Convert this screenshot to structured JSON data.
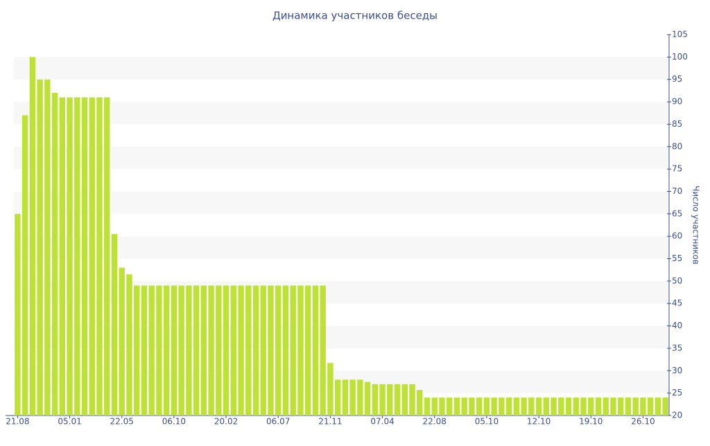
{
  "chart_data": {
    "type": "bar",
    "title": "Динамика участников беседы",
    "y_axis_label": "Число участников",
    "categories": [
      "21.08",
      null,
      null,
      null,
      null,
      null,
      null,
      "05.01",
      null,
      null,
      null,
      null,
      null,
      null,
      "22.05",
      null,
      null,
      null,
      null,
      null,
      null,
      "06.10",
      null,
      null,
      null,
      null,
      null,
      null,
      "20.02",
      null,
      null,
      null,
      null,
      null,
      null,
      "06.07",
      null,
      null,
      null,
      null,
      null,
      null,
      "21.11",
      null,
      null,
      null,
      null,
      null,
      null,
      "07.04",
      null,
      null,
      null,
      null,
      null,
      null,
      "22.08",
      null,
      null,
      null,
      null,
      null,
      null,
      "05.10",
      null,
      null,
      null,
      null,
      null,
      null,
      "12.10",
      null,
      null,
      null,
      null,
      null,
      null,
      "19.10",
      null,
      null,
      null,
      null,
      null,
      null,
      "26.10",
      null,
      null,
      null
    ],
    "values": [
      65,
      87,
      100,
      95,
      95,
      92,
      91,
      91,
      91,
      91,
      91,
      91,
      91,
      60.5,
      53,
      51.5,
      49,
      49,
      49,
      49,
      49,
      49,
      49,
      49,
      49,
      49,
      49,
      49,
      49,
      49,
      49,
      49,
      49,
      49,
      49,
      49,
      49,
      49,
      49,
      49,
      49,
      49,
      31.7,
      28,
      28,
      28,
      28,
      27.5,
      27,
      27,
      27,
      27,
      27,
      27,
      25.7,
      24,
      24,
      24,
      24,
      24,
      24,
      24,
      24,
      24,
      24,
      24,
      24,
      24,
      24,
      24,
      24,
      24,
      24,
      24,
      24,
      24,
      24,
      24,
      24,
      24,
      24,
      24,
      24,
      24,
      24,
      24,
      24,
      24
    ],
    "color": "#bde135",
    "ylim": [
      20,
      105
    ],
    "yticks": [
      20,
      25,
      30,
      35,
      40,
      45,
      50,
      55,
      60,
      65,
      70,
      75,
      80,
      85,
      90,
      95,
      100,
      105
    ],
    "grid": true
  }
}
